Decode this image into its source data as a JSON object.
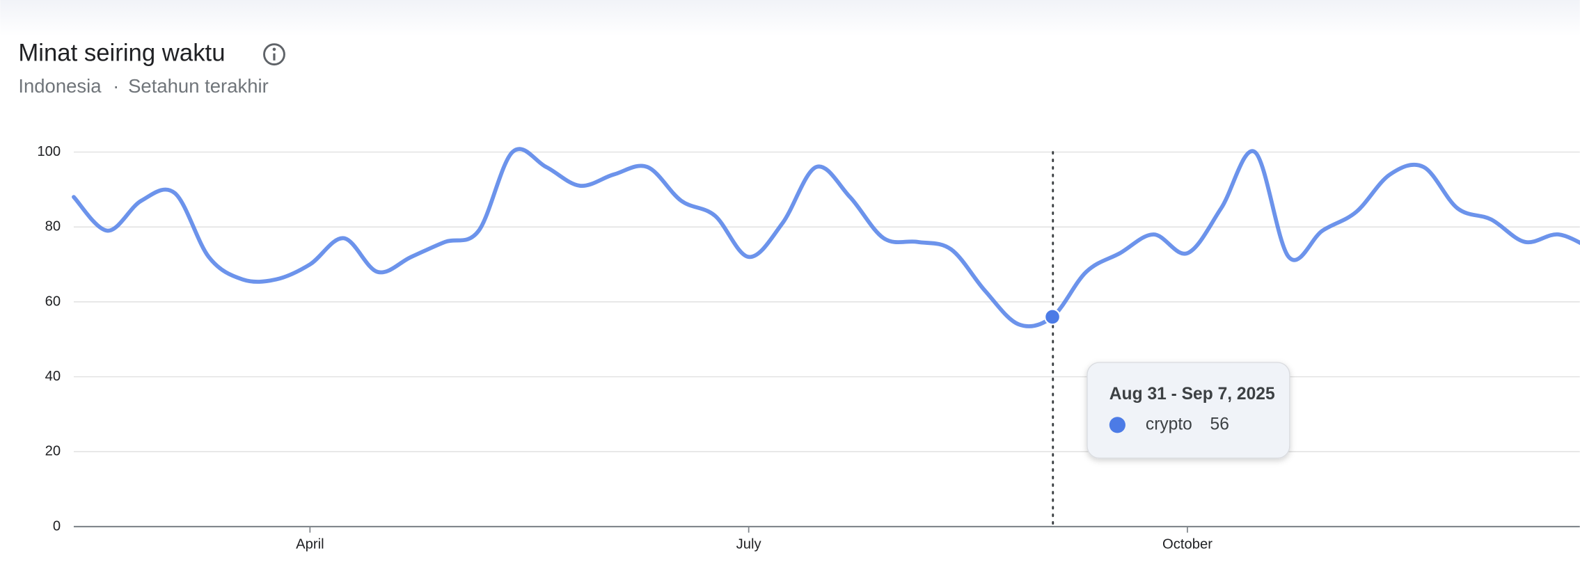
{
  "chart_data": {
    "type": "line",
    "title": "Minat seiring waktu",
    "subtitle": [
      "Indonesia",
      "·",
      "Setahun terakhir"
    ],
    "categories": [
      null,
      null,
      null,
      null,
      null,
      null,
      null,
      "April",
      null,
      null,
      null,
      null,
      null,
      null,
      null,
      null,
      null,
      null,
      null,
      null,
      "July",
      null,
      null,
      null,
      null,
      null,
      null,
      null,
      null,
      null,
      null,
      null,
      null,
      "October",
      null,
      null,
      null,
      null,
      null,
      null,
      null,
      null,
      null,
      null,
      null,
      null
    ],
    "series": [
      {
        "name": "crypto",
        "color": "#4c7be6",
        "values": [
          88,
          79,
          87,
          89,
          72,
          66,
          66,
          70,
          77,
          68,
          72,
          76,
          79,
          100,
          96,
          91,
          94,
          96,
          87,
          83,
          72,
          81,
          96,
          88,
          77,
          76,
          74,
          63,
          54,
          56,
          68,
          73,
          78,
          73,
          85,
          100,
          72,
          79,
          84,
          94,
          96,
          85,
          82,
          76,
          78,
          74
        ]
      }
    ],
    "ylim": [
      0,
      100
    ],
    "yticks": [
      0,
      20,
      40,
      60,
      80,
      100
    ],
    "grid": true,
    "tooltip_label": "Aug 31 - Sep 7, 2025"
  }
}
